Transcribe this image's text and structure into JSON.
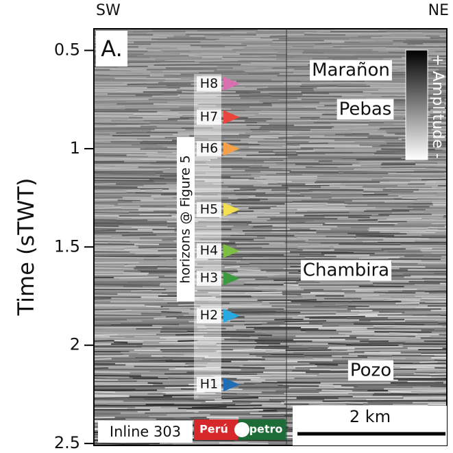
{
  "chart_data": {
    "type": "seismic",
    "ylabel": "Time (sTWT)",
    "left_label": "SW",
    "right_label": "NE",
    "panel_label": "A.",
    "ylim": [
      0.39,
      2.51
    ],
    "yticks": [
      0.5,
      1,
      1.5,
      2,
      2.5
    ],
    "horizons_note": "horizons @ Figure 5",
    "horizons": [
      {
        "name": "H8",
        "color": "#d96fae",
        "value": 0.67
      },
      {
        "name": "H7",
        "color": "#e8453c",
        "value": 0.84
      },
      {
        "name": "H6",
        "color": "#f4a14a",
        "value": 1.0
      },
      {
        "name": "H5",
        "color": "#f3df4f",
        "value": 1.31
      },
      {
        "name": "H4",
        "color": "#7dbf43",
        "value": 1.52
      },
      {
        "name": "H3",
        "color": "#3a9a3d",
        "value": 1.66
      },
      {
        "name": "H2",
        "color": "#28a9e1",
        "value": 1.85
      },
      {
        "name": "H1",
        "color": "#1f6db5",
        "value": 2.2
      }
    ],
    "formations": [
      "Marañon",
      "Pebas",
      "Chambira",
      "Pozo"
    ],
    "colorbar_label": "+ Amplitude -",
    "scale_bar_label": "2 km",
    "inline_label": "Inline 303",
    "logo": [
      "Perú",
      "petro"
    ]
  }
}
